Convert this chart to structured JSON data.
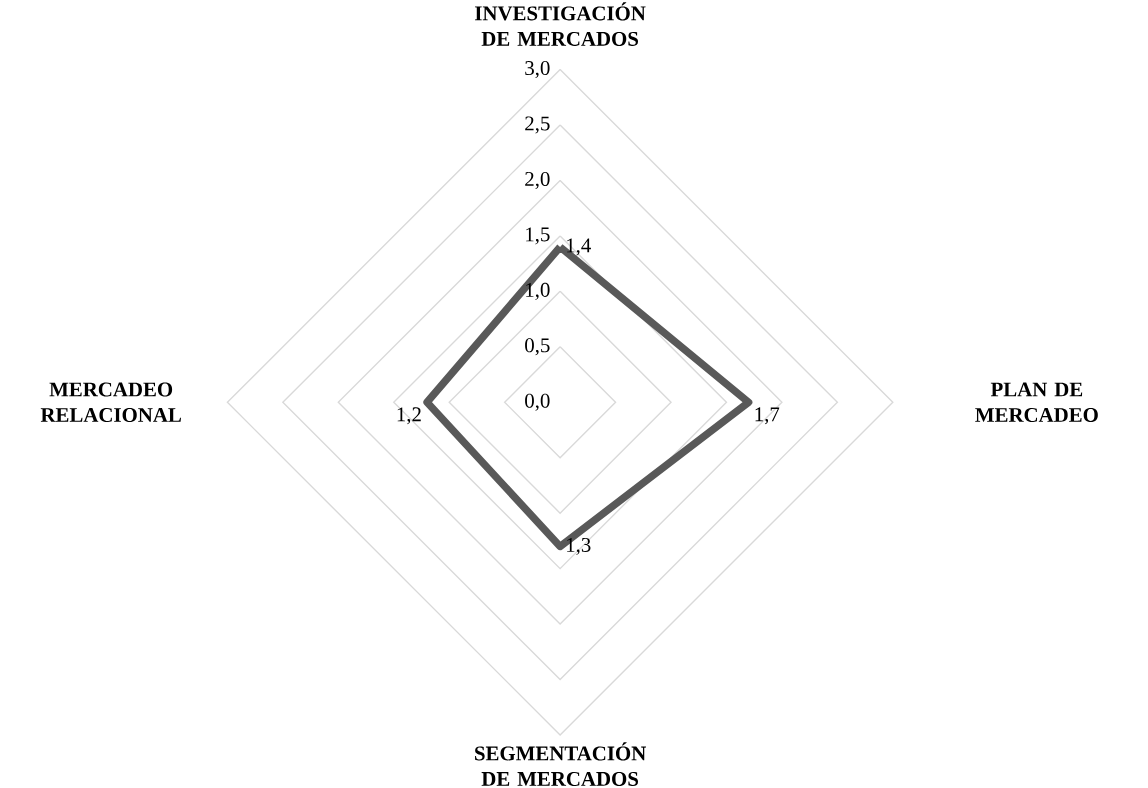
{
  "chart_data": {
    "type": "radar",
    "categories": [
      "INVESTIGACIÓN DE MERCADOS",
      "PLAN DE MERCADEO",
      "SEGMENTACIÓN DE MERCADOS",
      "MERCADEO RELACIONAL"
    ],
    "series": [
      {
        "color": "#595959",
        "values": [
          1.4,
          1.7,
          1.3,
          1.2
        ],
        "value_labels": [
          "1,4",
          "1,7",
          "1,3",
          "1,2"
        ]
      }
    ],
    "ylim": [
      0,
      3
    ],
    "yticks": [
      {
        "value": 0,
        "label": "0,0"
      },
      {
        "value": 0.5,
        "label": "0,5"
      },
      {
        "value": 1,
        "label": "1,0"
      },
      {
        "value": 1.5,
        "label": "1,5"
      },
      {
        "value": 2,
        "label": "2,0"
      },
      {
        "value": 2.5,
        "label": "2,5"
      },
      {
        "value": 3,
        "label": "3,0"
      }
    ],
    "grid": true
  }
}
